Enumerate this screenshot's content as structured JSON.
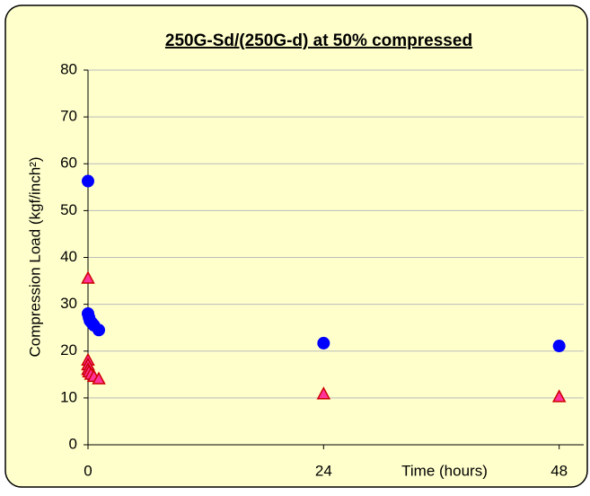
{
  "chart_data": {
    "type": "scatter",
    "title": "250G-Sd/(250G-d) at 50% compressed",
    "y_label": "Compression Load (kgf/inch²)",
    "x_label": "Time (hours)",
    "xlim": [
      0,
      50.5
    ],
    "xticks": [
      0,
      24,
      48
    ],
    "ylim": [
      0,
      80
    ],
    "yticks": [
      0,
      10,
      20,
      30,
      40,
      50,
      60,
      70,
      80
    ],
    "grid": true,
    "series": [
      {
        "name": "250G-Sd",
        "color": "#0000ff",
        "marker": "circle",
        "x": [
          0,
          0,
          0.1,
          0.2,
          0.4,
          0.6,
          1.1,
          24,
          48
        ],
        "values": [
          56.3,
          28,
          27.2,
          26.5,
          26,
          25.5,
          24.5,
          21.7,
          21.1
        ]
      },
      {
        "name": "250G-d",
        "color": "#ff3399",
        "marker": "triangle",
        "x": [
          0,
          0,
          0,
          0,
          0.1,
          0.3,
          0.6,
          1.1,
          24,
          48
        ],
        "values": [
          35.5,
          18,
          17,
          16,
          15.5,
          15,
          14.5,
          14,
          10.8,
          10.2
        ]
      }
    ]
  }
}
